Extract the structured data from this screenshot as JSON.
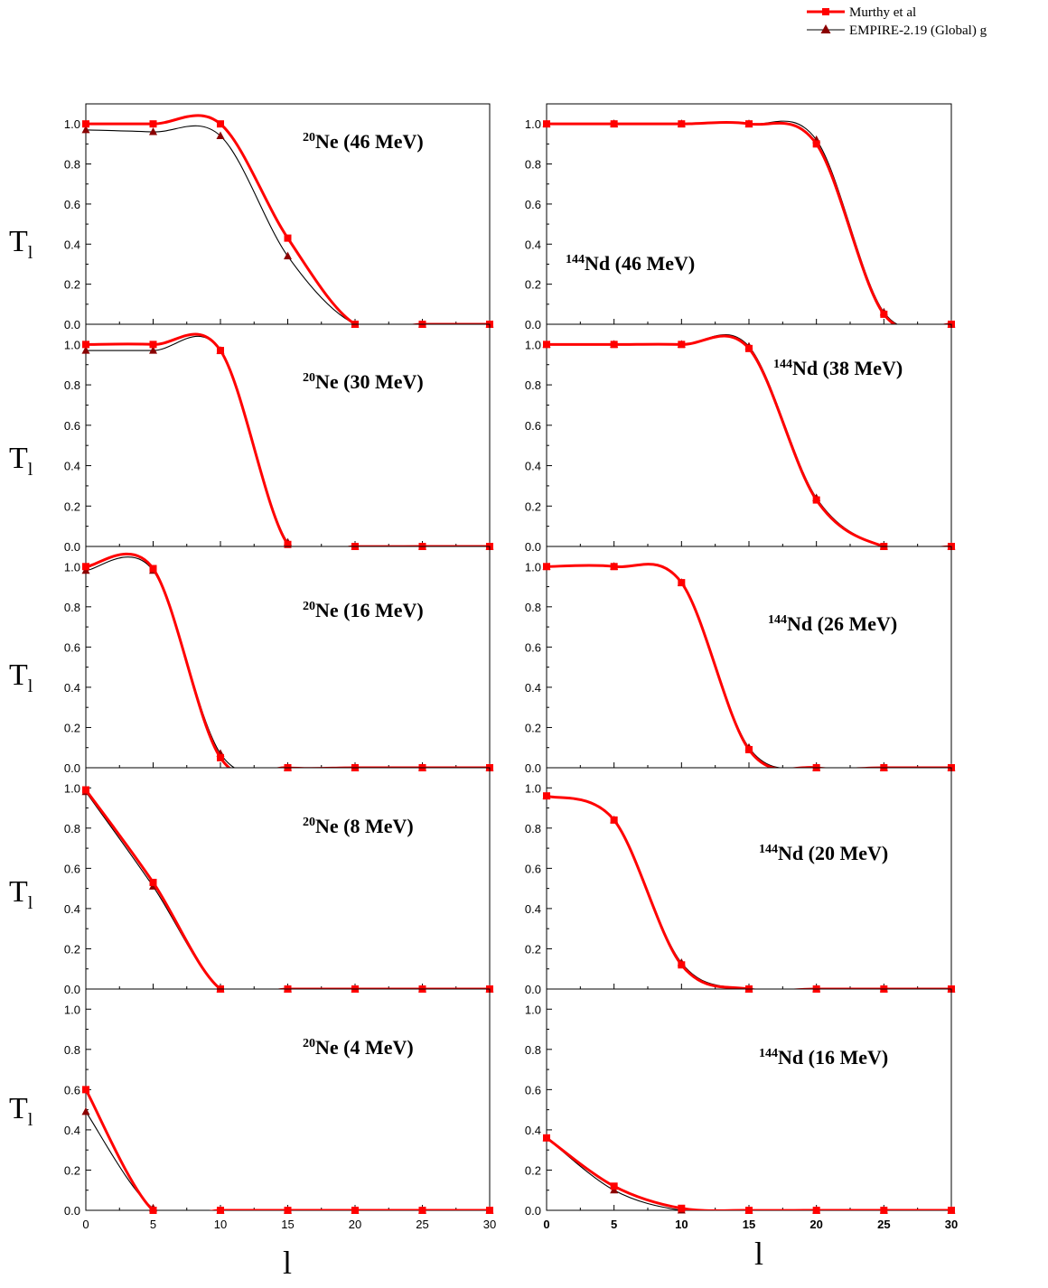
{
  "legend": [
    {
      "name": "Murthy et al",
      "color": "#ff0000",
      "marker": "square"
    },
    {
      "name": "EMPIRE-2.19 (Global) g",
      "color": "#8b0000",
      "marker": "triangle"
    }
  ],
  "y_axis_symbol": "T",
  "y_axis_subscript": "l",
  "x_axis_label": "l",
  "chart_data": [
    {
      "type": "line",
      "nucleus_mass": "20",
      "label": "Ne (46 MeV)",
      "xlim": [
        0,
        30
      ],
      "ylim": [
        0,
        1.1
      ],
      "x": [
        0,
        5,
        10,
        15,
        20,
        25,
        30
      ],
      "series": [
        {
          "name": "Murthy et al",
          "values": [
            1.0,
            1.0,
            1.0,
            0.43,
            0.0,
            0.0,
            0.0
          ]
        },
        {
          "name": "EMPIRE-2.19 (Global) g",
          "values": [
            0.97,
            0.96,
            0.94,
            0.34,
            0.0,
            0.0,
            0.0
          ]
        }
      ]
    },
    {
      "type": "line",
      "nucleus_mass": "144",
      "label": "Nd (46 MeV)",
      "xlim": [
        0,
        30
      ],
      "ylim": [
        0,
        1.1
      ],
      "x": [
        0,
        5,
        10,
        15,
        20,
        25,
        30
      ],
      "series": [
        {
          "name": "Murthy et al",
          "values": [
            1.0,
            1.0,
            1.0,
            1.0,
            0.9,
            0.05,
            0.0
          ]
        },
        {
          "name": "EMPIRE-2.19 (Global) g",
          "values": [
            1.0,
            1.0,
            1.0,
            1.0,
            0.92,
            0.06,
            0.0
          ]
        }
      ]
    },
    {
      "type": "line",
      "nucleus_mass": "20",
      "label": "Ne (30 MeV)",
      "xlim": [
        0,
        30
      ],
      "ylim": [
        0,
        1.1
      ],
      "x": [
        0,
        5,
        10,
        15,
        20,
        25,
        30
      ],
      "series": [
        {
          "name": "Murthy et al",
          "values": [
            1.0,
            1.0,
            0.97,
            0.01,
            0.0,
            0.0,
            0.0
          ]
        },
        {
          "name": "EMPIRE-2.19 (Global) g",
          "values": [
            0.97,
            0.97,
            0.97,
            0.02,
            0.0,
            0.0,
            0.0
          ]
        }
      ]
    },
    {
      "type": "line",
      "nucleus_mass": "144",
      "label": "Nd (38 MeV)",
      "xlim": [
        0,
        30
      ],
      "ylim": [
        0,
        1.1
      ],
      "x": [
        0,
        5,
        10,
        15,
        20,
        25,
        30
      ],
      "series": [
        {
          "name": "Murthy et al",
          "values": [
            1.0,
            1.0,
            1.0,
            0.98,
            0.23,
            0.0,
            0.0
          ]
        },
        {
          "name": "EMPIRE-2.19 (Global) g",
          "values": [
            1.0,
            1.0,
            1.0,
            0.99,
            0.24,
            0.0,
            0.0
          ]
        }
      ]
    },
    {
      "type": "line",
      "nucleus_mass": "20",
      "label": "Ne (16 MeV)",
      "xlim": [
        0,
        30
      ],
      "ylim": [
        0,
        1.1
      ],
      "x": [
        0,
        5,
        10,
        15,
        20,
        25,
        30
      ],
      "series": [
        {
          "name": "Murthy et al",
          "values": [
            1.0,
            0.99,
            0.05,
            0.0,
            0.0,
            0.0,
            0.0
          ]
        },
        {
          "name": "EMPIRE-2.19 (Global) g",
          "values": [
            0.98,
            0.98,
            0.07,
            0.0,
            0.0,
            0.0,
            0.0
          ]
        }
      ]
    },
    {
      "type": "line",
      "nucleus_mass": "144",
      "label": "Nd (26 MeV)",
      "xlim": [
        0,
        30
      ],
      "ylim": [
        0,
        1.1
      ],
      "x": [
        0,
        5,
        10,
        15,
        20,
        25,
        30
      ],
      "series": [
        {
          "name": "Murthy et al",
          "values": [
            1.0,
            1.0,
            0.92,
            0.09,
            0.0,
            0.0,
            0.0
          ]
        },
        {
          "name": "EMPIRE-2.19 (Global) g",
          "values": [
            1.0,
            1.0,
            0.92,
            0.1,
            0.0,
            0.0,
            0.0
          ]
        }
      ]
    },
    {
      "type": "line",
      "nucleus_mass": "20",
      "label": "Ne (8 MeV)",
      "xlim": [
        0,
        30
      ],
      "ylim": [
        0,
        1.1
      ],
      "x": [
        0,
        5,
        10,
        15,
        20,
        25,
        30
      ],
      "series": [
        {
          "name": "Murthy et al",
          "values": [
            0.99,
            0.53,
            0.0,
            0.0,
            0.0,
            0.0,
            0.0
          ]
        },
        {
          "name": "EMPIRE-2.19 (Global) g",
          "values": [
            0.98,
            0.51,
            0.0,
            0.0,
            0.0,
            0.0,
            0.0
          ]
        }
      ]
    },
    {
      "type": "line",
      "nucleus_mass": "144",
      "label": "Nd (20 MeV)",
      "xlim": [
        0,
        30
      ],
      "ylim": [
        0,
        1.1
      ],
      "x": [
        0,
        5,
        10,
        15,
        20,
        25,
        30
      ],
      "series": [
        {
          "name": "Murthy et al",
          "values": [
            0.96,
            0.84,
            0.12,
            0.0,
            0.0,
            0.0,
            0.0
          ]
        },
        {
          "name": "EMPIRE-2.19 (Global) g",
          "values": [
            0.96,
            0.84,
            0.13,
            0.0,
            0.0,
            0.0,
            0.0
          ]
        }
      ]
    },
    {
      "type": "line",
      "nucleus_mass": "20",
      "label": "Ne (4 MeV)",
      "xlim": [
        0,
        30
      ],
      "ylim": [
        0,
        1.1
      ],
      "x": [
        0,
        5,
        10,
        15,
        20,
        25,
        30
      ],
      "series": [
        {
          "name": "Murthy et al",
          "values": [
            0.6,
            0.0,
            0.0,
            0.0,
            0.0,
            0.0,
            0.0
          ]
        },
        {
          "name": "EMPIRE-2.19 (Global) g",
          "values": [
            0.49,
            0.01,
            0.0,
            0.0,
            0.0,
            0.0,
            0.0
          ]
        }
      ]
    },
    {
      "type": "line",
      "nucleus_mass": "144",
      "label": "Nd (16 MeV)",
      "xlim": [
        0,
        30
      ],
      "ylim": [
        0,
        1.1
      ],
      "x": [
        0,
        5,
        10,
        15,
        20,
        25,
        30
      ],
      "series": [
        {
          "name": "Murthy et al",
          "values": [
            0.36,
            0.12,
            0.01,
            0.0,
            0.0,
            0.0,
            0.0
          ]
        },
        {
          "name": "EMPIRE-2.19 (Global) g",
          "values": [
            0.36,
            0.1,
            0.0,
            0.0,
            0.0,
            0.0,
            0.0
          ]
        }
      ]
    }
  ],
  "y_ticks": [
    "0.0",
    "0.2",
    "0.4",
    "0.6",
    "0.8",
    "1.0"
  ],
  "x_ticks": [
    "0",
    "5",
    "10",
    "15",
    "20",
    "25",
    "30"
  ]
}
